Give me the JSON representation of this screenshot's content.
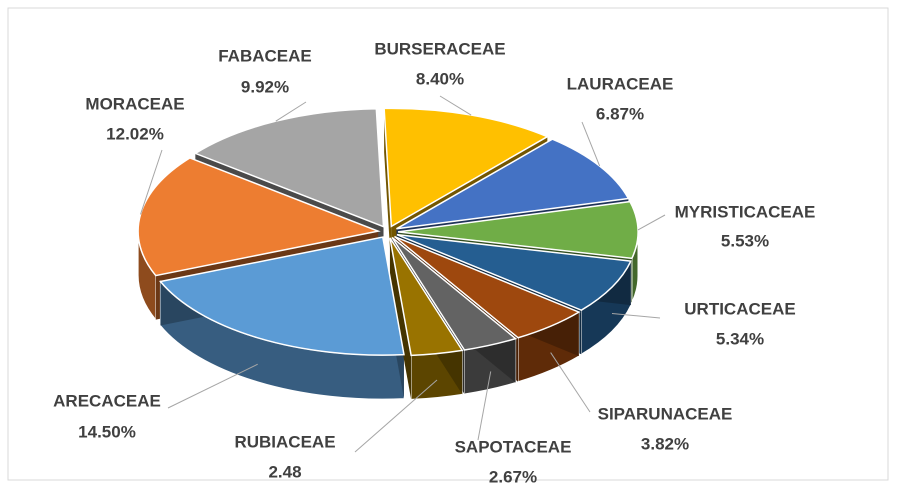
{
  "chart_data": {
    "type": "pie",
    "categories": [
      "BURSERACEAE",
      "LAURACEAE",
      "MYRISTICACEAE",
      "URTICACEAE",
      "SIPARUNACEAE",
      "SAPOTACEAE",
      "RUBIACEAE",
      "ARECACEAE",
      "MORACEAE",
      "FABACEAE"
    ],
    "values": [
      8.4,
      6.87,
      5.53,
      5.34,
      3.82,
      2.67,
      2.48,
      14.5,
      12.02,
      9.92
    ],
    "value_labels": [
      "8.40%",
      "6.87%",
      "5.53%",
      "5.34%",
      "3.82%",
      "2.67%",
      "2.48",
      "14.50%",
      "12.02%",
      "9.92%"
    ],
    "colors": [
      "#ffc000",
      "#4472c4",
      "#70ad47",
      "#255e91",
      "#9e480e",
      "#636363",
      "#997300",
      "#5b9bd5",
      "#ed7d31",
      "#a5a5a5"
    ]
  }
}
